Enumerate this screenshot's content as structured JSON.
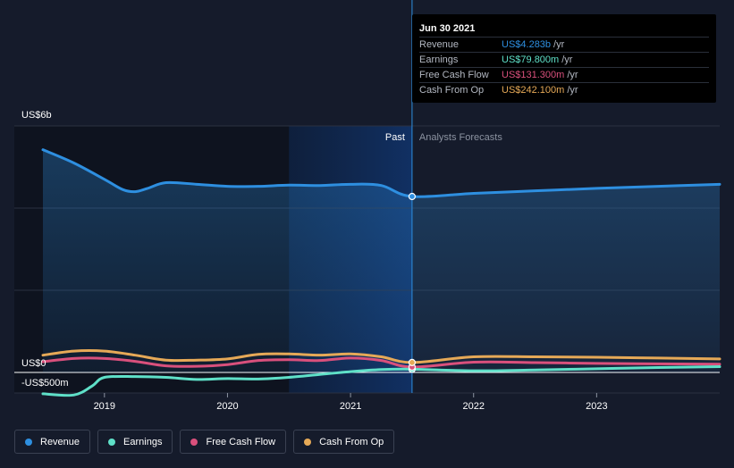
{
  "colors": {
    "revenue": "#2e8fe0",
    "earnings": "#5fe0c8",
    "free_cash_flow": "#d9507c",
    "cash_from_op": "#e6a957",
    "background": "#151b2b"
  },
  "tooltip": {
    "date": "Jun 30 2021",
    "rows": [
      {
        "label": "Revenue",
        "value": "US$4.283b",
        "unit": "/yr"
      },
      {
        "label": "Earnings",
        "value": "US$79.800m",
        "unit": "/yr"
      },
      {
        "label": "Free Cash Flow",
        "value": "US$131.300m",
        "unit": "/yr"
      },
      {
        "label": "Cash From Op",
        "value": "US$242.100m",
        "unit": "/yr"
      }
    ]
  },
  "legend": [
    {
      "label": "Revenue",
      "color": "#2e8fe0"
    },
    {
      "label": "Earnings",
      "color": "#5fe0c8"
    },
    {
      "label": "Free Cash Flow",
      "color": "#d9507c"
    },
    {
      "label": "Cash From Op",
      "color": "#e6a957"
    }
  ],
  "chart_data": {
    "type": "line",
    "y_unit": "US$ b",
    "ylim": [
      -0.5,
      6
    ],
    "xlim": [
      2018.5,
      2024.0
    ],
    "y_tick_labels": [
      {
        "value": 6,
        "label": "US$6b"
      },
      {
        "value": 0,
        "label": "US$0"
      },
      {
        "value": -0.5,
        "label": "-US$500m"
      }
    ],
    "x_tick_labels": [
      {
        "value": 2019,
        "label": "2019"
      },
      {
        "value": 2020,
        "label": "2020"
      },
      {
        "value": 2021,
        "label": "2021"
      },
      {
        "value": 2022,
        "label": "2022"
      },
      {
        "value": 2023,
        "label": "2023"
      }
    ],
    "grid": true,
    "divider_x": 2021.5,
    "past_label": "Past",
    "forecast_label": "Analysts Forecasts",
    "highlight_range": [
      2020.5,
      2021.5
    ],
    "series": [
      {
        "name": "Revenue",
        "color": "#2e8fe0",
        "points": [
          [
            2018.5,
            5.42
          ],
          [
            2018.75,
            5.1
          ],
          [
            2019.0,
            4.7
          ],
          [
            2019.15,
            4.45
          ],
          [
            2019.25,
            4.4
          ],
          [
            2019.35,
            4.48
          ],
          [
            2019.5,
            4.62
          ],
          [
            2019.75,
            4.58
          ],
          [
            2020.0,
            4.53
          ],
          [
            2020.25,
            4.53
          ],
          [
            2020.5,
            4.56
          ],
          [
            2020.75,
            4.55
          ],
          [
            2021.0,
            4.58
          ],
          [
            2021.25,
            4.55
          ],
          [
            2021.5,
            4.283
          ],
          [
            2022.0,
            4.36
          ],
          [
            2022.5,
            4.42
          ],
          [
            2023.0,
            4.48
          ],
          [
            2023.5,
            4.53
          ],
          [
            2024.0,
            4.58
          ]
        ]
      },
      {
        "name": "Earnings",
        "color": "#5fe0c8",
        "points": [
          [
            2018.5,
            -0.52
          ],
          [
            2018.75,
            -0.55
          ],
          [
            2018.9,
            -0.33
          ],
          [
            2019.0,
            -0.12
          ],
          [
            2019.25,
            -0.1
          ],
          [
            2019.5,
            -0.12
          ],
          [
            2019.75,
            -0.17
          ],
          [
            2020.0,
            -0.15
          ],
          [
            2020.25,
            -0.16
          ],
          [
            2020.5,
            -0.12
          ],
          [
            2020.75,
            -0.05
          ],
          [
            2021.0,
            0.02
          ],
          [
            2021.25,
            0.07
          ],
          [
            2021.5,
            0.0798
          ],
          [
            2022.0,
            0.04
          ],
          [
            2022.5,
            0.06
          ],
          [
            2023.0,
            0.09
          ],
          [
            2023.5,
            0.12
          ],
          [
            2024.0,
            0.14
          ]
        ]
      },
      {
        "name": "Free Cash Flow",
        "color": "#d9507c",
        "points": [
          [
            2018.5,
            0.26
          ],
          [
            2018.75,
            0.34
          ],
          [
            2019.0,
            0.34
          ],
          [
            2019.25,
            0.27
          ],
          [
            2019.5,
            0.16
          ],
          [
            2019.75,
            0.15
          ],
          [
            2020.0,
            0.19
          ],
          [
            2020.25,
            0.29
          ],
          [
            2020.5,
            0.31
          ],
          [
            2020.75,
            0.29
          ],
          [
            2021.0,
            0.35
          ],
          [
            2021.25,
            0.29
          ],
          [
            2021.5,
            0.1313
          ],
          [
            2022.0,
            0.25
          ],
          [
            2022.5,
            0.24
          ],
          [
            2023.0,
            0.22
          ],
          [
            2023.5,
            0.21
          ],
          [
            2024.0,
            0.2
          ]
        ]
      },
      {
        "name": "Cash From Op",
        "color": "#e6a957",
        "points": [
          [
            2018.5,
            0.42
          ],
          [
            2018.75,
            0.52
          ],
          [
            2019.0,
            0.52
          ],
          [
            2019.25,
            0.42
          ],
          [
            2019.5,
            0.3
          ],
          [
            2019.75,
            0.3
          ],
          [
            2020.0,
            0.33
          ],
          [
            2020.25,
            0.44
          ],
          [
            2020.5,
            0.45
          ],
          [
            2020.75,
            0.42
          ],
          [
            2021.0,
            0.45
          ],
          [
            2021.25,
            0.38
          ],
          [
            2021.5,
            0.2421
          ],
          [
            2022.0,
            0.38
          ],
          [
            2022.5,
            0.38
          ],
          [
            2023.0,
            0.37
          ],
          [
            2023.5,
            0.35
          ],
          [
            2024.0,
            0.33
          ]
        ]
      }
    ]
  }
}
